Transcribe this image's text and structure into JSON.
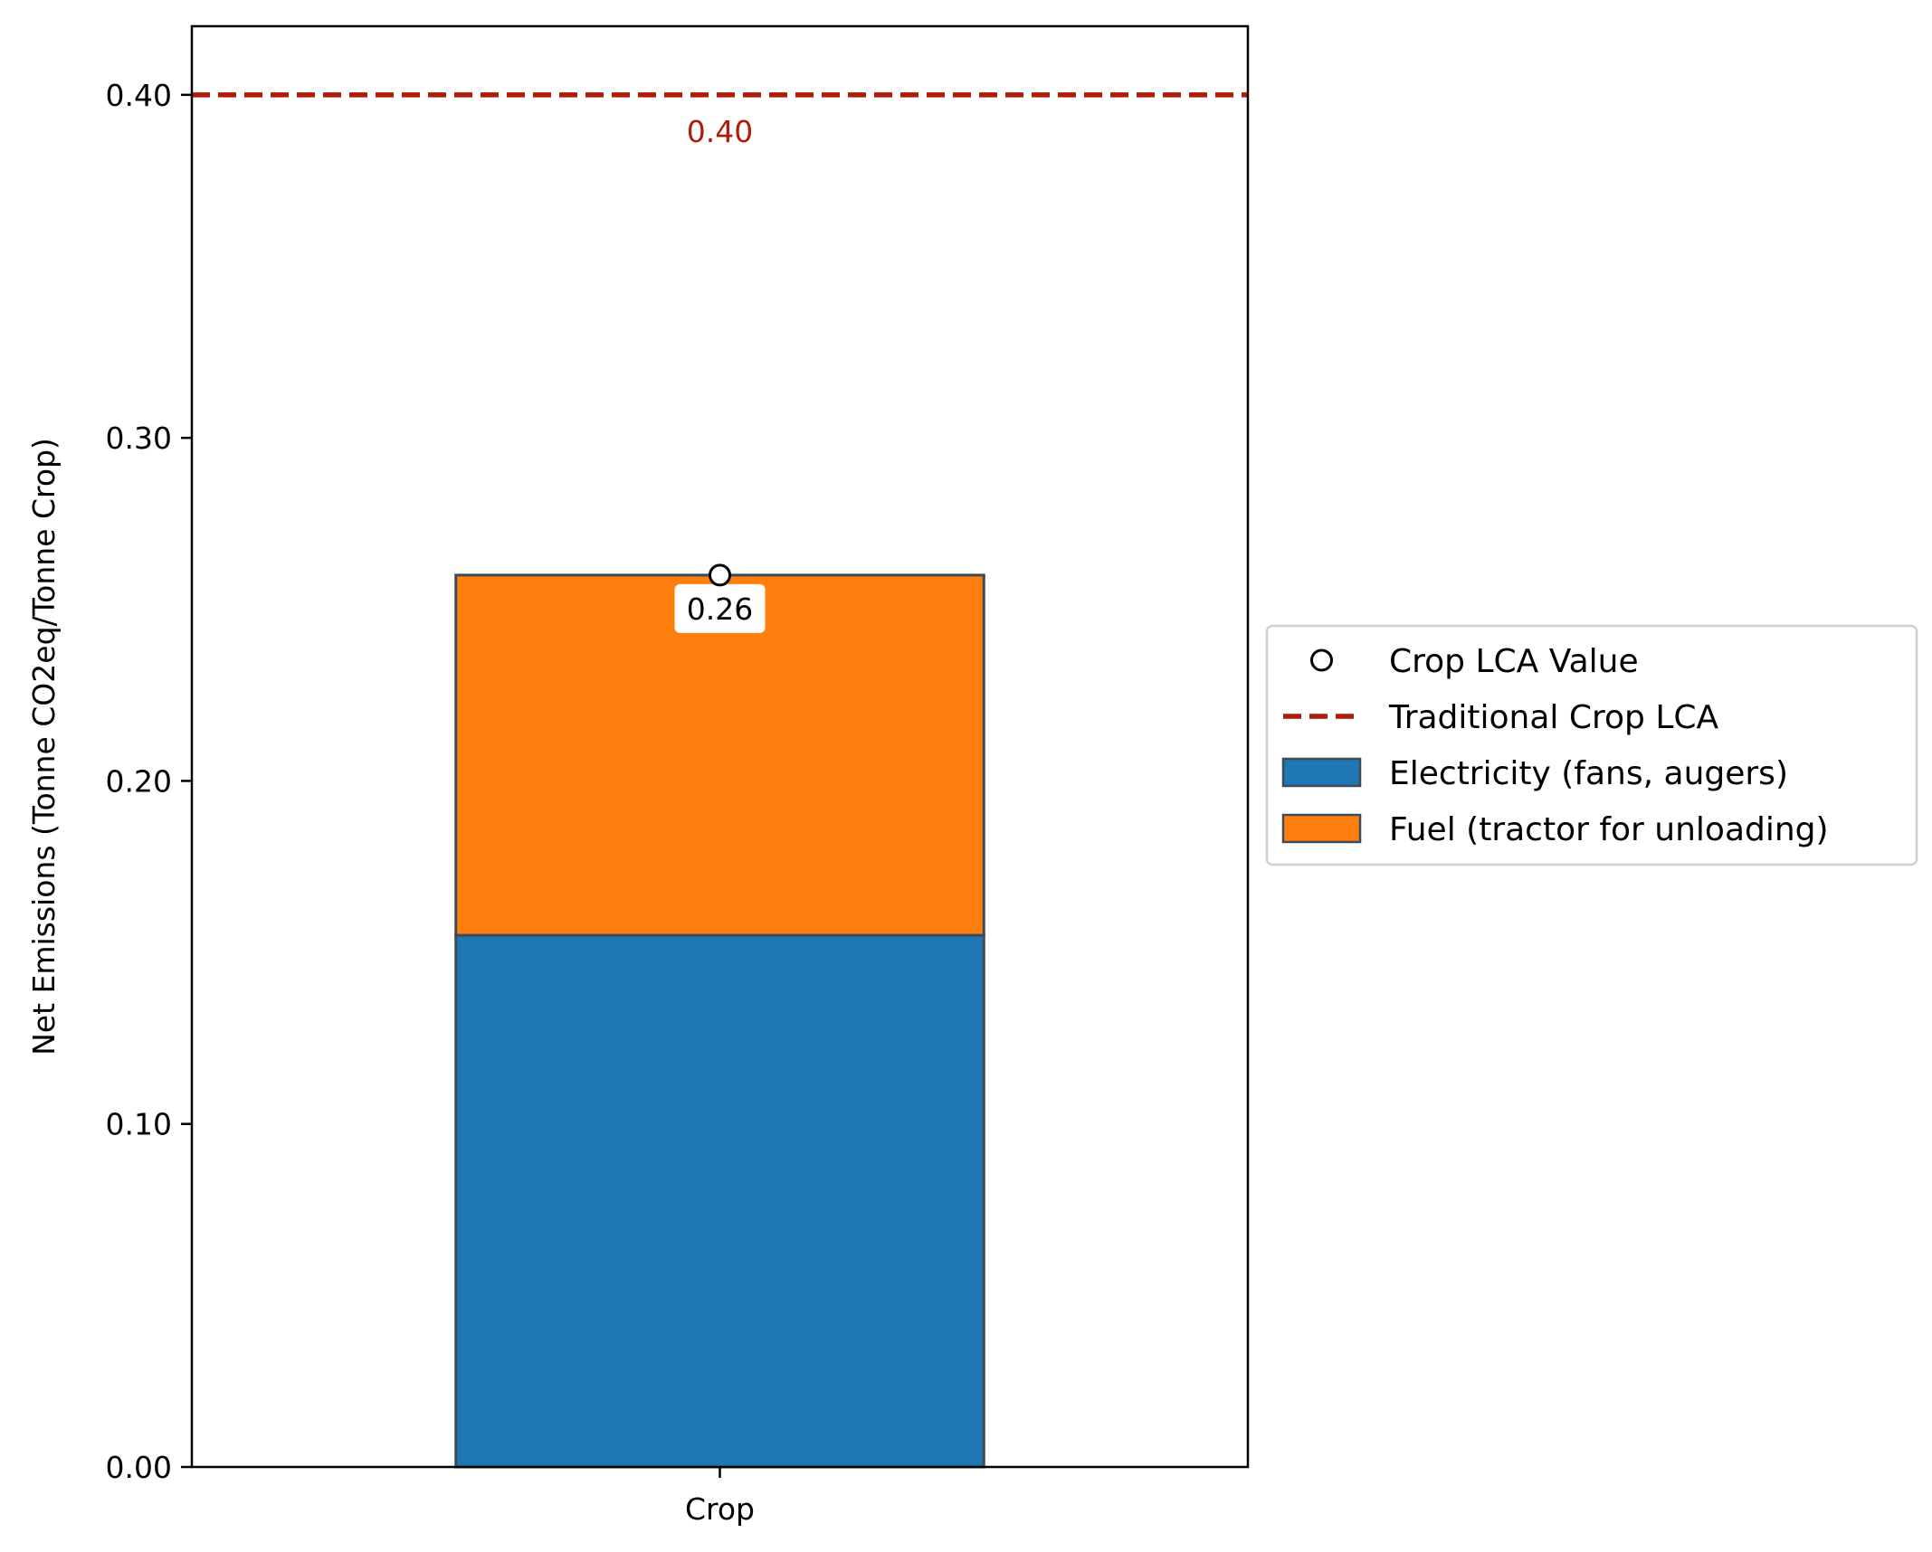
{
  "chart_data": {
    "type": "bar",
    "stacked": true,
    "categories": [
      "Crop"
    ],
    "series": [
      {
        "name": "Electricity (fans, augers)",
        "values": [
          0.155
        ],
        "color": "#1f77b4"
      },
      {
        "name": "Fuel (tractor for unloading)",
        "values": [
          0.105
        ],
        "color": "#ff7f0e"
      }
    ],
    "points": [
      {
        "name": "Crop LCA Value",
        "category": "Crop",
        "value": 0.26,
        "label": "0.26"
      }
    ],
    "reference_lines": [
      {
        "name": "Traditional Crop LCA",
        "value": 0.4,
        "label": "0.40",
        "color": "#b01c08",
        "style": "dashed"
      }
    ],
    "ylabel": "Net Emissions (Tonne CO2eq/Tonne Crop)",
    "xlabel": "",
    "ylim": [
      0,
      0.42
    ],
    "yticks": [
      0.0,
      0.1,
      0.2,
      0.3,
      0.4
    ],
    "ytick_labels": [
      "0.00",
      "0.10",
      "0.20",
      "0.30",
      "0.40"
    ],
    "grid": false,
    "legend_placement": "center-left outside right",
    "legend_order": [
      "Crop LCA Value",
      "Traditional Crop LCA",
      "Electricity (fans, augers)",
      "Fuel (tractor for unloading)"
    ],
    "bar_edge_color": "#3d4a57"
  }
}
